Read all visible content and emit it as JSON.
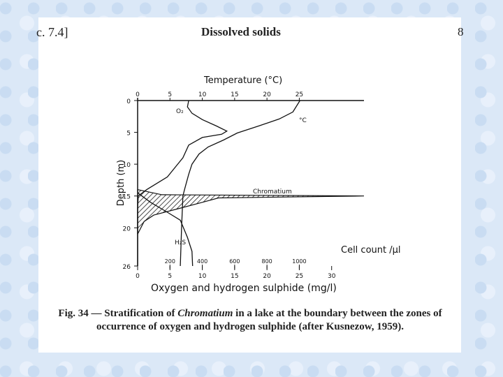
{
  "header": {
    "section": "c. 7.4]",
    "title": "Dissolved solids",
    "page": "8"
  },
  "chart_data": {
    "type": "depth-profile",
    "top_axis_label": "Temperature (°C)",
    "bottom_axis_label": "Oxygen and hydrogen sulphide (mg/l)",
    "y_label": "Depth (m)",
    "cell_axis_label": "Cell count /μl",
    "ylim": [
      0,
      26
    ],
    "y_inverted": true,
    "yticks": [
      0,
      5,
      10,
      15,
      20,
      26
    ],
    "top_xlim": [
      0,
      35
    ],
    "top_xticks": [
      0,
      5,
      10,
      15,
      20,
      25
    ],
    "xlim": [
      0,
      35
    ],
    "xticks": [
      0,
      5,
      10,
      15,
      20,
      25,
      30
    ],
    "cell_xlim": [
      0,
      1400
    ],
    "cell_xticks": [
      200,
      400,
      600,
      800,
      1000
    ],
    "series": [
      {
        "name": "O₂",
        "axis": "bottom",
        "color": "#111111",
        "style": "line",
        "depth": [
          0,
          1,
          2,
          3,
          4,
          4.8,
          5.3,
          5.8,
          7,
          9,
          12,
          14,
          15,
          17,
          20,
          26
        ],
        "values": [
          7.9,
          7.7,
          8.4,
          10,
          12.2,
          13.8,
          13,
          10,
          7.9,
          7,
          4.6,
          1.4,
          0.1,
          0,
          0,
          0
        ]
      },
      {
        "name": "°C",
        "axis": "top",
        "color": "#111111",
        "style": "line",
        "depth": [
          0,
          1.8,
          2.9,
          4,
          5.1,
          6.2,
          7.3,
          8.4,
          10,
          11.6,
          13.8,
          15,
          20,
          26
        ],
        "values": [
          25.1,
          24,
          21.9,
          18.7,
          15.4,
          13.3,
          10.9,
          9.5,
          8.4,
          7.9,
          7.3,
          7,
          6.8,
          6.6
        ]
      },
      {
        "name": "H₂S",
        "axis": "bottom",
        "color": "#111111",
        "style": "line",
        "depth": [
          14.5,
          16,
          17.5,
          18.8,
          21.5,
          23.7,
          26
        ],
        "values": [
          0,
          2,
          4.5,
          6.6,
          7.7,
          8.4,
          8.5
        ]
      },
      {
        "name": "Chromatium",
        "axis": "cell",
        "color": "#111111",
        "style": "hatched-area",
        "depth": [
          14,
          14.8,
          15,
          15.3,
          16,
          17,
          18,
          19,
          20,
          21
        ],
        "values": [
          0,
          150,
          1400,
          500,
          400,
          250,
          100,
          40,
          20,
          0
        ]
      }
    ],
    "caption": [
      "Fig. 34 — Stratification of ",
      "Chromatium",
      " in a lake at the boundary between the zones of occurrence of oxygen and hydrogen sulphide (after Kusnezow, 1959)."
    ]
  }
}
